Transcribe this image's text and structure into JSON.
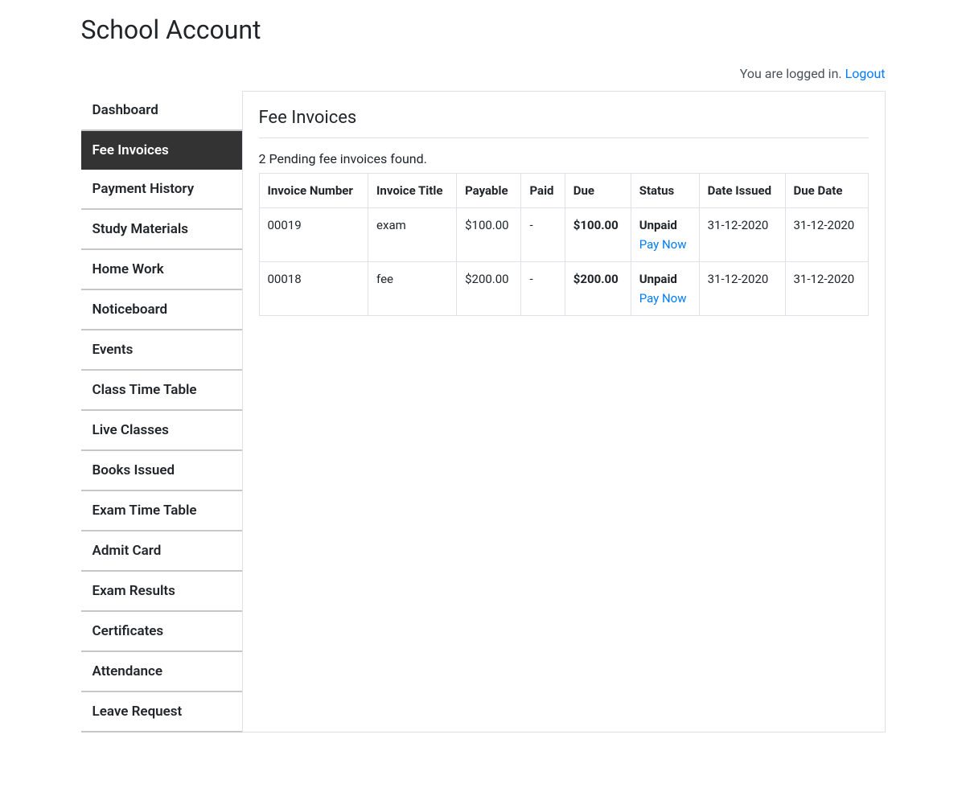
{
  "page": {
    "title": "School Account",
    "login_text": "You are logged in.",
    "logout_label": "Logout"
  },
  "sidebar": {
    "items": [
      {
        "label": "Dashboard",
        "active": false
      },
      {
        "label": "Fee Invoices",
        "active": true
      },
      {
        "label": "Payment History",
        "active": false
      },
      {
        "label": "Study Materials",
        "active": false
      },
      {
        "label": "Home Work",
        "active": false
      },
      {
        "label": "Noticeboard",
        "active": false
      },
      {
        "label": "Events",
        "active": false
      },
      {
        "label": "Class Time Table",
        "active": false
      },
      {
        "label": "Live Classes",
        "active": false
      },
      {
        "label": "Books Issued",
        "active": false
      },
      {
        "label": "Exam Time Table",
        "active": false
      },
      {
        "label": "Admit Card",
        "active": false
      },
      {
        "label": "Exam Results",
        "active": false
      },
      {
        "label": "Certificates",
        "active": false
      },
      {
        "label": "Attendance",
        "active": false
      },
      {
        "label": "Leave Request",
        "active": false
      }
    ]
  },
  "main": {
    "title": "Fee Invoices",
    "summary": "2 Pending fee invoices found.",
    "columns": [
      "Invoice Number",
      "Invoice Title",
      "Payable",
      "Paid",
      "Due",
      "Status",
      "Date Issued",
      "Due Date"
    ],
    "pay_now_label": "Pay Now",
    "rows": [
      {
        "invoice_number": "00019",
        "invoice_title": "exam",
        "payable": "$100.00",
        "paid": "-",
        "due": "$100.00",
        "status": "Unpaid",
        "date_issued": "31-12-2020",
        "due_date": "31-12-2020"
      },
      {
        "invoice_number": "00018",
        "invoice_title": "fee",
        "payable": "$200.00",
        "paid": "-",
        "due": "$200.00",
        "status": "Unpaid",
        "date_issued": "31-12-2020",
        "due_date": "31-12-2020"
      }
    ]
  }
}
